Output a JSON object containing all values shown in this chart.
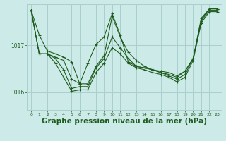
{
  "background_color": "#cceae8",
  "plot_bg_color": "#cceae8",
  "grid_color": "#aacfcd",
  "line_color": "#1e5c1e",
  "xlabel": "Graphe pression niveau de la mer (hPa)",
  "xlabel_fontsize": 7.5,
  "ylim": [
    1015.62,
    1017.88
  ],
  "yticks": [
    1016,
    1017
  ],
  "xticks": [
    0,
    1,
    2,
    3,
    4,
    5,
    6,
    7,
    8,
    9,
    10,
    11,
    12,
    13,
    14,
    15,
    16,
    17,
    18,
    19,
    20,
    21,
    22,
    23
  ],
  "series": [
    [
      1017.75,
      1017.22,
      1016.88,
      1016.82,
      1016.75,
      1016.65,
      1016.18,
      1016.18,
      1016.55,
      1016.78,
      1017.62,
      1017.18,
      1016.85,
      1016.68,
      1016.55,
      1016.48,
      1016.42,
      1016.38,
      1016.32,
      1016.45,
      1016.72,
      1017.58,
      1017.78,
      1017.78
    ],
    [
      1017.75,
      1016.82,
      1016.82,
      1016.75,
      1016.68,
      1016.28,
      1016.18,
      1016.62,
      1017.02,
      1017.18,
      1017.68,
      1017.22,
      1016.65,
      1016.55,
      1016.52,
      1016.48,
      1016.45,
      1016.42,
      1016.35,
      1016.45,
      1016.72,
      1017.55,
      1017.78,
      1017.78
    ],
    [
      1017.75,
      1016.82,
      1016.82,
      1016.72,
      1016.48,
      1016.08,
      1016.12,
      1016.12,
      1016.52,
      1016.72,
      1017.18,
      1016.95,
      1016.72,
      1016.55,
      1016.52,
      1016.48,
      1016.42,
      1016.35,
      1016.28,
      1016.38,
      1016.72,
      1017.52,
      1017.75,
      1017.75
    ],
    [
      1017.75,
      1016.82,
      1016.82,
      1016.62,
      1016.32,
      1016.02,
      1016.05,
      1016.05,
      1016.42,
      1016.62,
      1016.95,
      1016.82,
      1016.62,
      1016.52,
      1016.48,
      1016.42,
      1016.38,
      1016.32,
      1016.22,
      1016.32,
      1016.68,
      1017.48,
      1017.72,
      1017.72
    ]
  ]
}
